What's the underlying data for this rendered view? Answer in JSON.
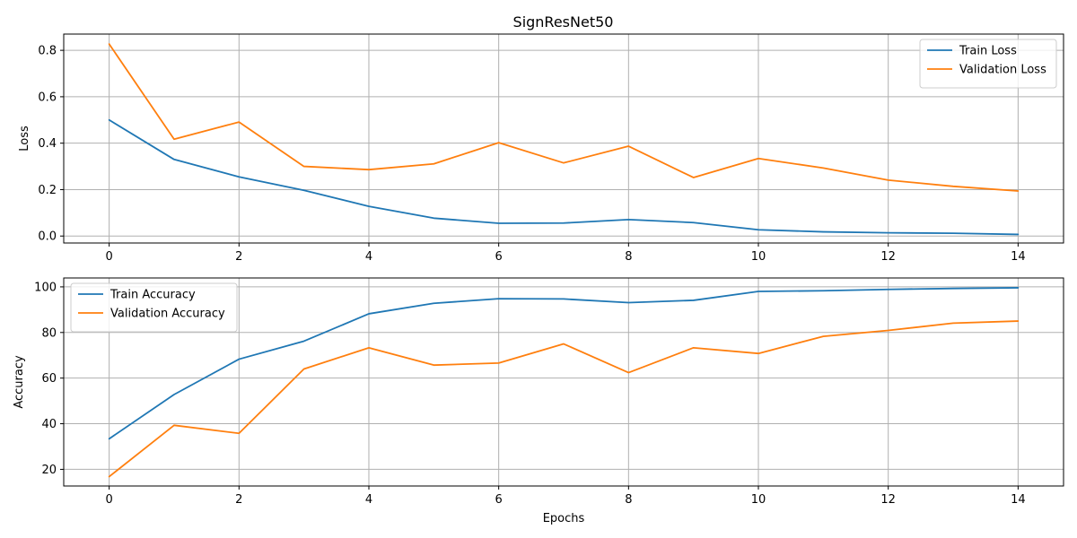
{
  "title": "SignResNet50",
  "chart_data": [
    {
      "type": "line",
      "title": "SignResNet50",
      "xlabel": "",
      "ylabel": "Loss",
      "x": [
        0,
        1,
        2,
        3,
        4,
        5,
        6,
        7,
        8,
        9,
        10,
        11,
        12,
        13,
        14
      ],
      "xlim": [
        -0.7,
        14.7
      ],
      "ylim": [
        -0.03,
        0.87
      ],
      "xticks": [
        0,
        2,
        4,
        6,
        8,
        10,
        12,
        14
      ],
      "yticks": [
        0.0,
        0.2,
        0.4,
        0.6,
        0.8
      ],
      "ytick_decimals": 1,
      "grid": true,
      "legend": "top-right",
      "series": [
        {
          "name": "Train Loss",
          "color": "#1f77b4",
          "values": [
            0.5,
            0.33,
            0.255,
            0.197,
            0.128,
            0.077,
            0.055,
            0.056,
            0.071,
            0.058,
            0.027,
            0.018,
            0.014,
            0.012,
            0.007
          ]
        },
        {
          "name": "Validation Loss",
          "color": "#ff7f0e",
          "values": [
            0.827,
            0.417,
            0.491,
            0.3,
            0.286,
            0.311,
            0.402,
            0.315,
            0.387,
            0.252,
            0.334,
            0.293,
            0.241,
            0.214,
            0.194
          ]
        }
      ]
    },
    {
      "type": "line",
      "title": "",
      "xlabel": "Epochs",
      "ylabel": "Accuracy",
      "x": [
        0,
        1,
        2,
        3,
        4,
        5,
        6,
        7,
        8,
        9,
        10,
        11,
        12,
        13,
        14
      ],
      "xlim": [
        -0.7,
        14.7
      ],
      "ylim": [
        12.7,
        103.9
      ],
      "xticks": [
        0,
        2,
        4,
        6,
        8,
        10,
        12,
        14
      ],
      "yticks": [
        20,
        40,
        60,
        80,
        100
      ],
      "ytick_decimals": 0,
      "grid": true,
      "legend": "top-left",
      "series": [
        {
          "name": "Train Accuracy",
          "color": "#1f77b4",
          "values": [
            33.4,
            52.8,
            68.3,
            76.2,
            88.2,
            92.8,
            94.8,
            94.7,
            93.1,
            94.1,
            98.0,
            98.3,
            98.9,
            99.3,
            99.6
          ]
        },
        {
          "name": "Validation Accuracy",
          "color": "#ff7f0e",
          "values": [
            16.8,
            39.3,
            35.8,
            64.0,
            73.3,
            65.7,
            66.6,
            75.0,
            62.4,
            73.3,
            70.8,
            78.3,
            80.9,
            84.1,
            85.0
          ]
        }
      ]
    }
  ]
}
